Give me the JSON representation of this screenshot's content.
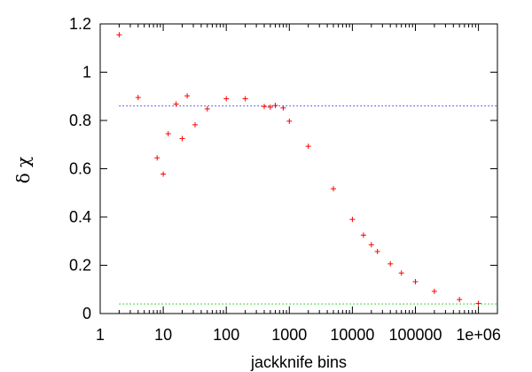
{
  "chart_data": {
    "type": "scatter",
    "xlabel": "jackknife bins",
    "ylabel": "δ χ",
    "xscale": "log",
    "xlim": [
      1,
      2000000
    ],
    "ylim": [
      0,
      1.2
    ],
    "xticks": [
      {
        "value": 1,
        "label": "1"
      },
      {
        "value": 10,
        "label": "10"
      },
      {
        "value": 100,
        "label": "100"
      },
      {
        "value": 1000,
        "label": "1000"
      },
      {
        "value": 10000,
        "label": "10000"
      },
      {
        "value": 100000,
        "label": "100000"
      },
      {
        "value": 1000000,
        "label": "1e+06"
      }
    ],
    "yticks": [
      {
        "value": 0,
        "label": "0"
      },
      {
        "value": 0.2,
        "label": "0.2"
      },
      {
        "value": 0.4,
        "label": "0.4"
      },
      {
        "value": 0.6,
        "label": "0.6"
      },
      {
        "value": 0.8,
        "label": "0.8"
      },
      {
        "value": 1,
        "label": "1"
      },
      {
        "value": 1.2,
        "label": "1.2"
      }
    ],
    "grid": false,
    "legend": "none",
    "series": [
      {
        "marker": "+",
        "color": "#ff0000",
        "points": [
          {
            "x": 2,
            "y": 1.155
          },
          {
            "x": 4,
            "y": 0.895
          },
          {
            "x": 8,
            "y": 0.645
          },
          {
            "x": 10,
            "y": 0.578
          },
          {
            "x": 12,
            "y": 0.745
          },
          {
            "x": 16,
            "y": 0.868
          },
          {
            "x": 20,
            "y": 0.725
          },
          {
            "x": 24,
            "y": 0.902
          },
          {
            "x": 32,
            "y": 0.782
          },
          {
            "x": 50,
            "y": 0.848
          },
          {
            "x": 100,
            "y": 0.89
          },
          {
            "x": 200,
            "y": 0.89
          },
          {
            "x": 400,
            "y": 0.858
          },
          {
            "x": 500,
            "y": 0.855
          },
          {
            "x": 600,
            "y": 0.862
          },
          {
            "x": 800,
            "y": 0.852
          },
          {
            "x": 1000,
            "y": 0.797
          },
          {
            "x": 2000,
            "y": 0.693
          },
          {
            "x": 5000,
            "y": 0.517
          },
          {
            "x": 10000,
            "y": 0.39
          },
          {
            "x": 15000,
            "y": 0.325
          },
          {
            "x": 20000,
            "y": 0.285
          },
          {
            "x": 25000,
            "y": 0.257
          },
          {
            "x": 40000,
            "y": 0.206
          },
          {
            "x": 60000,
            "y": 0.168
          },
          {
            "x": 100000,
            "y": 0.132
          },
          {
            "x": 200000,
            "y": 0.092
          },
          {
            "x": 500000,
            "y": 0.058
          },
          {
            "x": 1000000,
            "y": 0.042
          }
        ]
      }
    ],
    "reference_lines": [
      {
        "y": 0.86,
        "style": "dotted",
        "color": "#3333ff"
      },
      {
        "y": 0.04,
        "style": "dotted",
        "color": "#00cc00"
      }
    ]
  }
}
